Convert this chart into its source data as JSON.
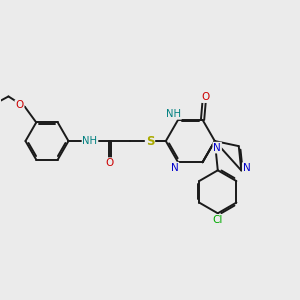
{
  "background_color": "#ebebeb",
  "atom_colors": {
    "C": "#000000",
    "N": "#0000cc",
    "O": "#cc0000",
    "S": "#aaaa00",
    "Cl": "#00aa00",
    "H_label": "#008080"
  },
  "bond_color": "#1a1a1a",
  "bond_width": 1.4,
  "fig_width": 3.0,
  "fig_height": 3.0,
  "dpi": 100
}
